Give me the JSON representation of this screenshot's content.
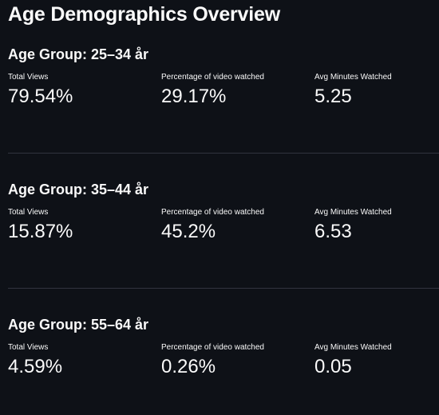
{
  "page": {
    "title": "Age Demographics Overview"
  },
  "groups": [
    {
      "heading": "Age Group: 25–34 år",
      "metrics": [
        {
          "label": "Total Views",
          "value": "79.54%"
        },
        {
          "label": "Percentage of video watched",
          "value": "29.17%"
        },
        {
          "label": "Avg Minutes Watched",
          "value": "5.25"
        }
      ]
    },
    {
      "heading": "Age Group: 35–44 år",
      "metrics": [
        {
          "label": "Total Views",
          "value": "15.87%"
        },
        {
          "label": "Percentage of video watched",
          "value": "45.2%"
        },
        {
          "label": "Avg Minutes Watched",
          "value": "6.53"
        }
      ]
    },
    {
      "heading": "Age Group: 55–64 år",
      "metrics": [
        {
          "label": "Total Views",
          "value": "4.59%"
        },
        {
          "label": "Percentage of video watched",
          "value": "0.26%"
        },
        {
          "label": "Avg Minutes Watched",
          "value": "0.05"
        }
      ]
    }
  ]
}
